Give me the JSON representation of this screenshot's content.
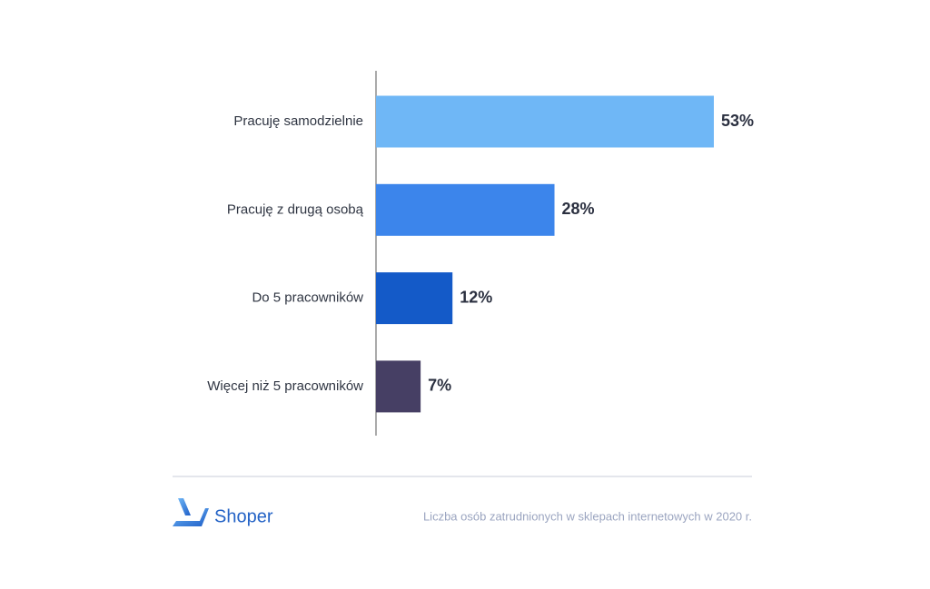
{
  "chart_data": {
    "type": "bar",
    "orientation": "horizontal",
    "categories": [
      "Pracuję samodzielnie",
      "Pracuję z drugą osobą",
      "Do 5 pracowników",
      "Więcej niż 5 pracowników"
    ],
    "values": [
      53,
      28,
      12,
      7
    ],
    "value_labels": [
      "53%",
      "28%",
      "12%",
      "7%"
    ],
    "colors": [
      "#6fb7f6",
      "#3c85eb",
      "#145ac8",
      "#463f64"
    ],
    "caption": "Liczba osób zatrudnionych w sklepach internetowych w 2020 r.",
    "brand": "Shoper"
  }
}
